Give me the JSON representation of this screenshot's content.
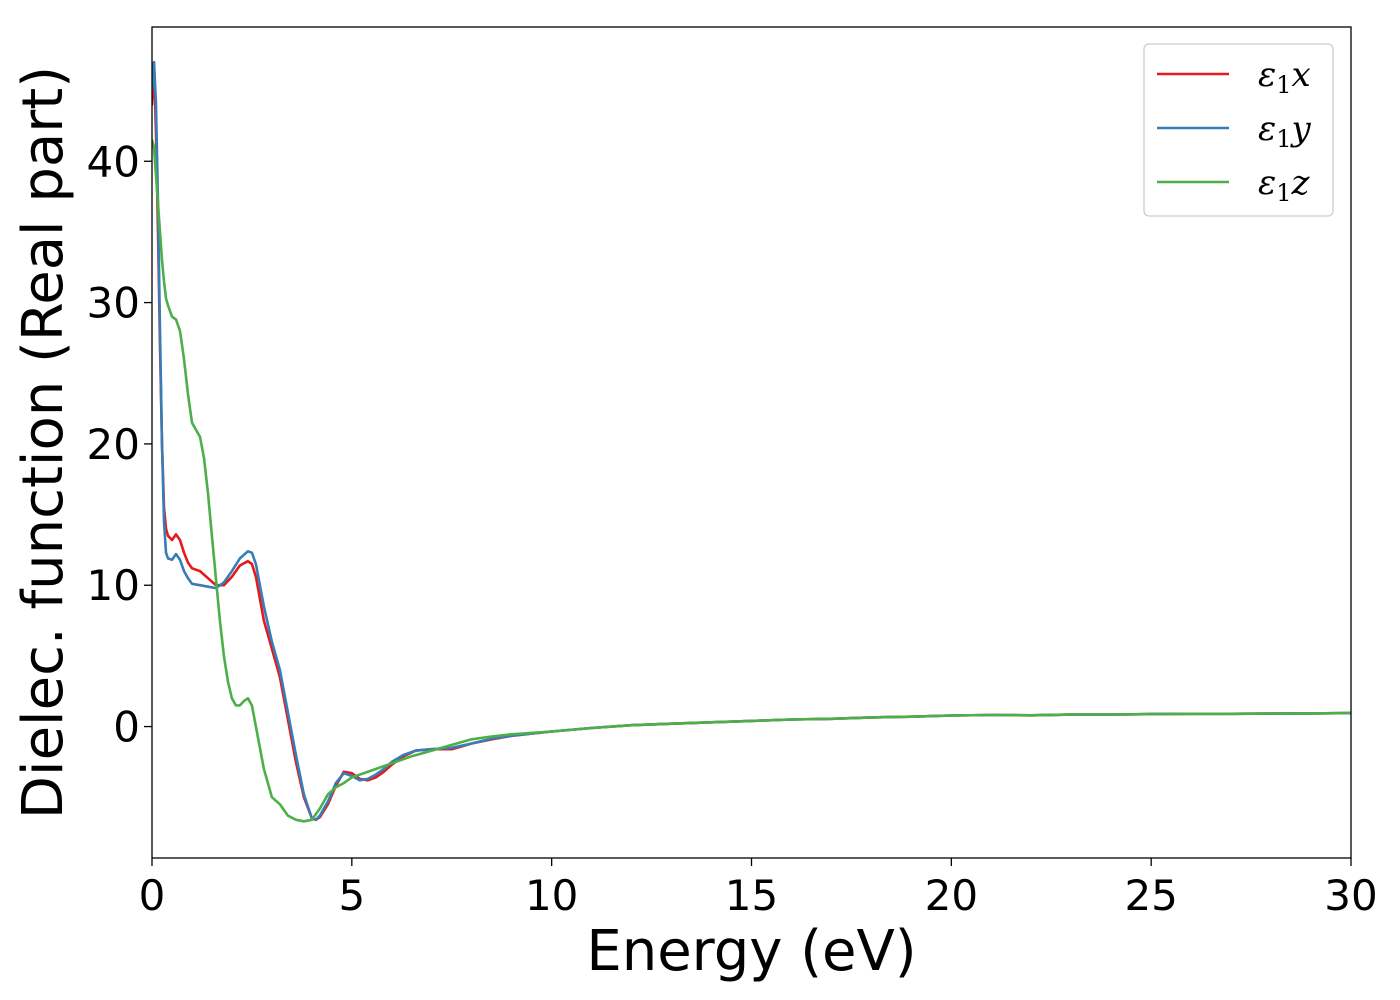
{
  "chart_data": {
    "type": "line",
    "xlabel": "Energy (eV)",
    "ylabel": "Dielec. function (Real part)",
    "xlim": [
      0,
      30
    ],
    "ylim": [
      -9.3,
      49.5
    ],
    "xticks": [
      0,
      5,
      10,
      15,
      20,
      25,
      30
    ],
    "yticks": [
      0,
      10,
      20,
      30,
      40
    ],
    "grid": false,
    "legend_position": "top-right",
    "series": [
      {
        "name": "ε1x",
        "legend": {
          "symbol": "ε",
          "sub": "1",
          "axis": "x"
        },
        "color": "#e41a1c",
        "x": [
          0.0,
          0.05,
          0.1,
          0.15,
          0.2,
          0.25,
          0.3,
          0.35,
          0.4,
          0.5,
          0.6,
          0.7,
          0.8,
          0.9,
          1.0,
          1.2,
          1.4,
          1.6,
          1.8,
          2.0,
          2.2,
          2.4,
          2.5,
          2.6,
          2.8,
          3.0,
          3.2,
          3.4,
          3.6,
          3.8,
          4.0,
          4.1,
          4.2,
          4.4,
          4.6,
          4.8,
          5.0,
          5.2,
          5.4,
          5.6,
          5.8,
          6.0,
          6.3,
          6.6,
          7.0,
          7.5,
          8.0,
          8.5,
          9.0,
          9.5,
          10.0,
          11.0,
          12.0,
          13.0,
          14.0,
          15.0,
          16.0,
          17.0,
          18.0,
          19.0,
          20.0,
          21.0,
          22.0,
          23.0,
          24.0,
          25.0,
          26.0,
          27.0,
          28.0,
          29.0,
          30.0
        ],
        "y": [
          44,
          47,
          42,
          35,
          27,
          20,
          15.5,
          14,
          13.5,
          13.2,
          13.6,
          13.2,
          12.3,
          11.6,
          11.2,
          11.0,
          10.5,
          10.0,
          10.0,
          10.6,
          11.4,
          11.7,
          11.5,
          10.6,
          7.5,
          5.5,
          3.5,
          0.5,
          -2.5,
          -5.0,
          -6.5,
          -6.6,
          -6.4,
          -5.5,
          -4.2,
          -3.2,
          -3.3,
          -3.7,
          -3.8,
          -3.6,
          -3.2,
          -2.7,
          -2.1,
          -1.7,
          -1.6,
          -1.6,
          -1.2,
          -0.9,
          -0.65,
          -0.5,
          -0.35,
          -0.1,
          0.1,
          0.2,
          0.3,
          0.4,
          0.5,
          0.55,
          0.65,
          0.7,
          0.78,
          0.82,
          0.8,
          0.85,
          0.85,
          0.88,
          0.9,
          0.9,
          0.92,
          0.93,
          0.95
        ]
      },
      {
        "name": "ε1y",
        "legend": {
          "symbol": "ε",
          "sub": "1",
          "axis": "y"
        },
        "color": "#377eb8",
        "x": [
          0.0,
          0.05,
          0.1,
          0.15,
          0.2,
          0.25,
          0.3,
          0.35,
          0.4,
          0.5,
          0.6,
          0.7,
          0.8,
          0.9,
          1.0,
          1.2,
          1.4,
          1.6,
          1.8,
          2.0,
          2.2,
          2.4,
          2.5,
          2.6,
          2.8,
          3.0,
          3.2,
          3.4,
          3.6,
          3.8,
          4.0,
          4.1,
          4.2,
          4.4,
          4.6,
          4.8,
          5.0,
          5.2,
          5.4,
          5.6,
          5.8,
          6.0,
          6.3,
          6.6,
          7.0,
          7.5,
          8.0,
          8.5,
          9.0,
          9.5,
          10.0,
          11.0,
          12.0,
          13.0,
          14.0,
          15.0,
          16.0,
          17.0,
          18.0,
          19.0,
          20.0,
          21.0,
          22.0,
          23.0,
          24.0,
          25.0,
          26.0,
          27.0,
          28.0,
          29.0,
          30.0
        ],
        "y": [
          45,
          47,
          44,
          37,
          28,
          20,
          14.5,
          12.3,
          11.9,
          11.8,
          12.2,
          11.8,
          11.0,
          10.5,
          10.1,
          10.0,
          9.9,
          9.8,
          10.2,
          11.0,
          11.9,
          12.4,
          12.3,
          11.5,
          8.5,
          6.0,
          4.0,
          1.0,
          -2.0,
          -4.8,
          -6.5,
          -6.6,
          -6.3,
          -5.3,
          -4.0,
          -3.3,
          -3.5,
          -3.8,
          -3.7,
          -3.4,
          -3.0,
          -2.5,
          -2.0,
          -1.7,
          -1.6,
          -1.5,
          -1.2,
          -0.85,
          -0.65,
          -0.5,
          -0.35,
          -0.1,
          0.1,
          0.2,
          0.3,
          0.4,
          0.5,
          0.55,
          0.65,
          0.7,
          0.78,
          0.82,
          0.8,
          0.85,
          0.85,
          0.88,
          0.9,
          0.9,
          0.92,
          0.93,
          0.95
        ]
      },
      {
        "name": "ε1z",
        "legend": {
          "symbol": "ε",
          "sub": "1",
          "axis": "z"
        },
        "color": "#4daf4a",
        "x": [
          0.0,
          0.05,
          0.1,
          0.15,
          0.2,
          0.25,
          0.3,
          0.35,
          0.4,
          0.5,
          0.6,
          0.7,
          0.8,
          0.9,
          1.0,
          1.1,
          1.2,
          1.3,
          1.4,
          1.5,
          1.6,
          1.7,
          1.8,
          1.9,
          2.0,
          2.1,
          2.2,
          2.3,
          2.4,
          2.5,
          2.6,
          2.7,
          2.8,
          3.0,
          3.2,
          3.4,
          3.6,
          3.8,
          4.0,
          4.2,
          4.4,
          4.6,
          4.8,
          5.0,
          5.3,
          5.6,
          6.0,
          6.5,
          7.0,
          7.5,
          8.0,
          8.5,
          9.0,
          9.5,
          10.0,
          11.0,
          12.0,
          13.0,
          14.0,
          15.0,
          16.0,
          17.0,
          18.0,
          19.0,
          20.0,
          21.0,
          22.0,
          23.0,
          24.0,
          25.0,
          26.0,
          27.0,
          28.0,
          29.0,
          30.0
        ],
        "y": [
          41.5,
          41,
          39,
          37,
          35,
          33,
          31.5,
          30.3,
          29.8,
          29.0,
          28.8,
          28.0,
          26.0,
          23.5,
          21.5,
          21.0,
          20.5,
          19.0,
          16.5,
          13.5,
          10.5,
          7.5,
          5.0,
          3.2,
          2.0,
          1.5,
          1.5,
          1.8,
          2.0,
          1.5,
          0.0,
          -1.5,
          -3.0,
          -5.0,
          -5.5,
          -6.3,
          -6.6,
          -6.7,
          -6.6,
          -5.8,
          -4.8,
          -4.3,
          -4.0,
          -3.6,
          -3.3,
          -3.0,
          -2.6,
          -2.1,
          -1.7,
          -1.3,
          -0.9,
          -0.7,
          -0.55,
          -0.45,
          -0.35,
          -0.1,
          0.1,
          0.2,
          0.3,
          0.4,
          0.5,
          0.55,
          0.65,
          0.7,
          0.78,
          0.82,
          0.8,
          0.85,
          0.85,
          0.88,
          0.9,
          0.9,
          0.92,
          0.93,
          0.95
        ]
      }
    ]
  }
}
